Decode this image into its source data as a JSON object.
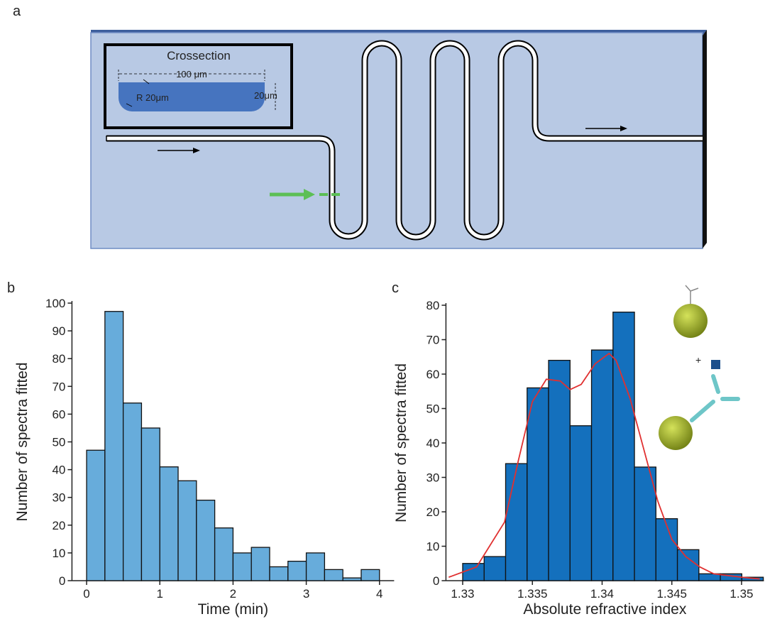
{
  "panel_labels": [
    "a",
    "b",
    "c"
  ],
  "diagram": {
    "inset_title": "Crossection",
    "width_label": "100 μm",
    "radius_label": "R 20μm",
    "height_label": "20μm"
  },
  "chart_data": [
    {
      "type": "histogram",
      "x_label": "Time (min)",
      "y_label": "Number of spectra fitted",
      "color": "#67acdb",
      "bins": [
        0,
        0.25,
        0.5,
        0.75,
        1,
        1.25,
        1.5,
        1.75,
        2,
        2.25,
        2.5,
        2.75,
        3,
        3.25,
        3.5,
        3.75,
        4
      ],
      "values": [
        47,
        97,
        64,
        55,
        41,
        36,
        29,
        19,
        10,
        12,
        5,
        7,
        10,
        4,
        1,
        4
      ],
      "xlim": [
        -0.2,
        4.2
      ],
      "xticks": [
        0,
        1,
        2,
        3,
        4
      ],
      "ylim": [
        0,
        100
      ],
      "yticks": [
        0,
        10,
        20,
        30,
        40,
        50,
        60,
        70,
        80,
        90,
        100
      ]
    },
    {
      "type": "histogram",
      "x_label": "Absolute refractive index",
      "y_label": "Number of spectra fitted",
      "color": "#1470bd",
      "bins": [
        1.33,
        1.33154,
        1.33308,
        1.33462,
        1.33616,
        1.3377,
        1.33924,
        1.34078,
        1.34232,
        1.34386,
        1.3454,
        1.34694,
        1.34848,
        1.35002,
        1.35156
      ],
      "values": [
        5,
        7,
        34,
        56,
        64,
        45,
        67,
        78,
        33,
        18,
        9,
        2,
        2,
        1
      ],
      "xlim": [
        1.3288,
        1.3516
      ],
      "xticks": [
        1.33,
        1.335,
        1.34,
        1.345,
        1.35
      ],
      "ylim": [
        0,
        80
      ],
      "yticks": [
        0,
        10,
        20,
        30,
        40,
        50,
        60,
        70,
        80
      ],
      "fit": {
        "type": "line",
        "color": "#e03030",
        "x": [
          1.329,
          1.331,
          1.333,
          1.334,
          1.335,
          1.336,
          1.337,
          1.3377,
          1.3385,
          1.3395,
          1.3405,
          1.341,
          1.342,
          1.343,
          1.344,
          1.345,
          1.346,
          1.347,
          1.348,
          1.35,
          1.3513
        ],
        "values": [
          1,
          4,
          17,
          35,
          52,
          58.5,
          58,
          55.5,
          57,
          63,
          66,
          64,
          53,
          38,
          23,
          12,
          7,
          4,
          2,
          1,
          0.5
        ]
      }
    }
  ]
}
